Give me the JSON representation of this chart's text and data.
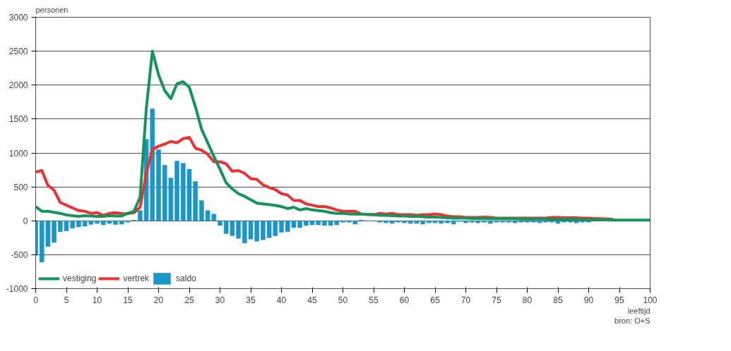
{
  "chart_data": {
    "type": "line",
    "ylabel": "personen",
    "xlabel": "leeftijd",
    "annotations": [
      "bron: O+S"
    ],
    "x": [
      0,
      1,
      2,
      3,
      4,
      5,
      6,
      7,
      8,
      9,
      10,
      11,
      12,
      13,
      14,
      15,
      16,
      17,
      18,
      19,
      20,
      21,
      22,
      23,
      24,
      25,
      26,
      27,
      28,
      29,
      30,
      31,
      32,
      33,
      34,
      35,
      36,
      37,
      38,
      39,
      40,
      41,
      42,
      43,
      44,
      45,
      46,
      47,
      48,
      49,
      50,
      51,
      52,
      53,
      54,
      55,
      56,
      57,
      58,
      59,
      60,
      61,
      62,
      63,
      64,
      65,
      66,
      67,
      68,
      69,
      70,
      71,
      72,
      73,
      74,
      75,
      76,
      77,
      78,
      79,
      80,
      81,
      82,
      83,
      84,
      85,
      86,
      87,
      88,
      89,
      90,
      91,
      92,
      93,
      94,
      95,
      96,
      97,
      98,
      99,
      100
    ],
    "series": [
      {
        "name": "vestiging",
        "color": "#10955a",
        "values": [
          210,
          140,
          140,
          125,
          110,
          85,
          75,
          65,
          75,
          70,
          65,
          65,
          75,
          70,
          70,
          110,
          140,
          350,
          1650,
          2500,
          2150,
          1920,
          1800,
          2020,
          2050,
          1970,
          1680,
          1350,
          1150,
          950,
          760,
          560,
          470,
          400,
          360,
          310,
          260,
          250,
          240,
          225,
          210,
          180,
          200,
          160,
          180,
          160,
          150,
          140,
          120,
          110,
          110,
          100,
          100,
          100,
          95,
          90,
          80,
          80,
          75,
          70,
          70,
          65,
          65,
          60,
          55,
          55,
          50,
          45,
          40,
          40,
          40,
          35,
          35,
          35,
          30,
          30,
          30,
          30,
          30,
          25,
          25,
          25,
          25,
          25,
          20,
          20,
          20,
          20,
          20,
          15,
          15,
          15,
          15,
          10,
          10,
          10,
          10,
          10,
          10,
          10,
          10
        ]
      },
      {
        "name": "vertrek",
        "color": "#f03030",
        "values": [
          720,
          740,
          520,
          450,
          270,
          230,
          190,
          150,
          140,
          110,
          120,
          80,
          110,
          120,
          105,
          105,
          120,
          200,
          700,
          1050,
          1100,
          1130,
          1170,
          1150,
          1210,
          1230,
          1070,
          1040,
          980,
          870,
          870,
          840,
          730,
          740,
          700,
          620,
          610,
          530,
          490,
          460,
          400,
          380,
          300,
          300,
          250,
          230,
          210,
          210,
          190,
          160,
          140,
          140,
          140,
          100,
          90,
          90,
          110,
          100,
          110,
          90,
          90,
          90,
          80,
          90,
          90,
          100,
          90,
          70,
          60,
          60,
          50,
          50,
          50,
          55,
          50,
          40,
          40,
          40,
          40,
          40,
          40,
          40,
          40,
          40,
          50,
          50,
          45,
          45,
          45,
          40,
          40,
          30,
          30,
          25,
          20,
          null,
          null,
          null,
          null,
          null,
          null
        ]
      },
      {
        "name": "saldo",
        "type": "bar",
        "color": "#1a96c8",
        "values": [
          -510,
          -610,
          -380,
          -320,
          -160,
          -150,
          -110,
          -90,
          -80,
          -55,
          -40,
          -60,
          -40,
          -55,
          -50,
          -20,
          10,
          150,
          1200,
          1650,
          1050,
          820,
          630,
          880,
          850,
          760,
          580,
          300,
          150,
          100,
          -70,
          -190,
          -220,
          -260,
          -330,
          -270,
          -300,
          -280,
          -250,
          -220,
          -170,
          -160,
          -100,
          -100,
          -70,
          -60,
          -60,
          -70,
          -70,
          -60,
          -20,
          -20,
          -50,
          10,
          0,
          0,
          -20,
          -30,
          -40,
          -20,
          -30,
          -40,
          -40,
          -50,
          -30,
          -30,
          -40,
          -30,
          -50,
          -10,
          -30,
          -20,
          -30,
          -20,
          -40,
          -20,
          -20,
          -20,
          -30,
          -20,
          -20,
          -20,
          -30,
          -20,
          -20,
          -40,
          -20,
          -20,
          -30,
          -20,
          -20,
          null,
          null,
          null,
          null,
          null,
          null,
          null,
          null,
          null,
          null
        ]
      }
    ],
    "xlim": [
      0,
      100
    ],
    "xticks": [
      0,
      5,
      10,
      15,
      20,
      25,
      30,
      35,
      40,
      45,
      50,
      55,
      60,
      65,
      70,
      75,
      80,
      85,
      90,
      95,
      100
    ],
    "ylim": [
      -1000,
      3000
    ],
    "yticks": [
      -1000,
      -500,
      0,
      500,
      1000,
      1500,
      2000,
      2500,
      3000
    ],
    "grid": "y",
    "legend": "bottom left"
  }
}
